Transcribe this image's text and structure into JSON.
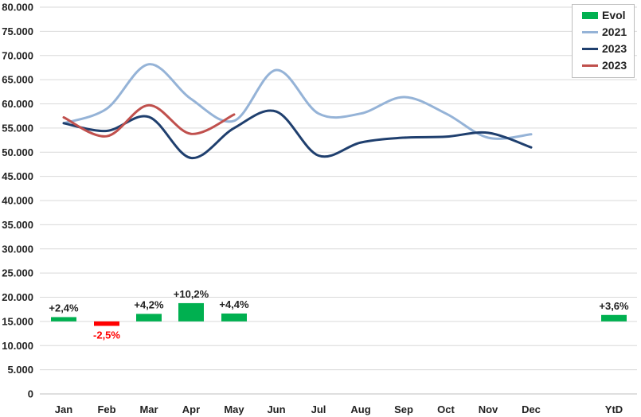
{
  "chart_data": {
    "type": "line",
    "categories": [
      "Jan",
      "Feb",
      "Mar",
      "Apr",
      "May",
      "Jun",
      "Jul",
      "Aug",
      "Sep",
      "Oct",
      "Nov",
      "Dec",
      "YtD"
    ],
    "ylim": [
      0,
      80000
    ],
    "y_ticks": [
      "0",
      "5.000",
      "10.000",
      "15.000",
      "20.000",
      "25.000",
      "30.000",
      "35.000",
      "40.000",
      "45.000",
      "50.000",
      "55.000",
      "60.000",
      "65.000",
      "70.000",
      "75.000",
      "80.000"
    ],
    "grid": "horizontal",
    "legend_position": "top-right",
    "legend": [
      {
        "name": "Evol",
        "kind": "bar",
        "color": "#00b050"
      },
      {
        "name": "2021",
        "kind": "line",
        "color": "#95b3d7"
      },
      {
        "name": "2023",
        "kind": "line",
        "color": "#1f3f6e"
      },
      {
        "name": "2023",
        "kind": "line",
        "color": "#c0504d"
      }
    ],
    "series": [
      {
        "name": "2021",
        "kind": "line",
        "color": "#95b3d7",
        "values": [
          56000,
          59000,
          68200,
          61000,
          56500,
          67000,
          58000,
          58000,
          61400,
          58000,
          53000,
          53700,
          null
        ]
      },
      {
        "name": "2023",
        "kind": "line",
        "color": "#1f3f6e",
        "values": [
          56000,
          54400,
          57300,
          48800,
          55000,
          58400,
          49300,
          52000,
          53000,
          53200,
          54000,
          51000,
          null
        ]
      },
      {
        "name": "2023",
        "kind": "line",
        "color": "#c0504d",
        "values": [
          57200,
          53300,
          59700,
          53800,
          57800,
          null,
          null,
          null,
          null,
          null,
          null,
          null,
          null
        ]
      }
    ],
    "evol": {
      "name": "Evol",
      "baseline": 15000,
      "positive_color": "#00b050",
      "negative_color": "#ff0000",
      "values": [
        2.4,
        -2.5,
        4.2,
        10.2,
        4.4,
        null,
        null,
        null,
        null,
        null,
        null,
        null,
        3.6
      ],
      "labels": [
        "+2,4%",
        "-2,5%",
        "+4,2%",
        "+10,2%",
        "+4,4%",
        "",
        "",
        "",
        "",
        "",
        "",
        "",
        "+3,6%"
      ]
    }
  }
}
